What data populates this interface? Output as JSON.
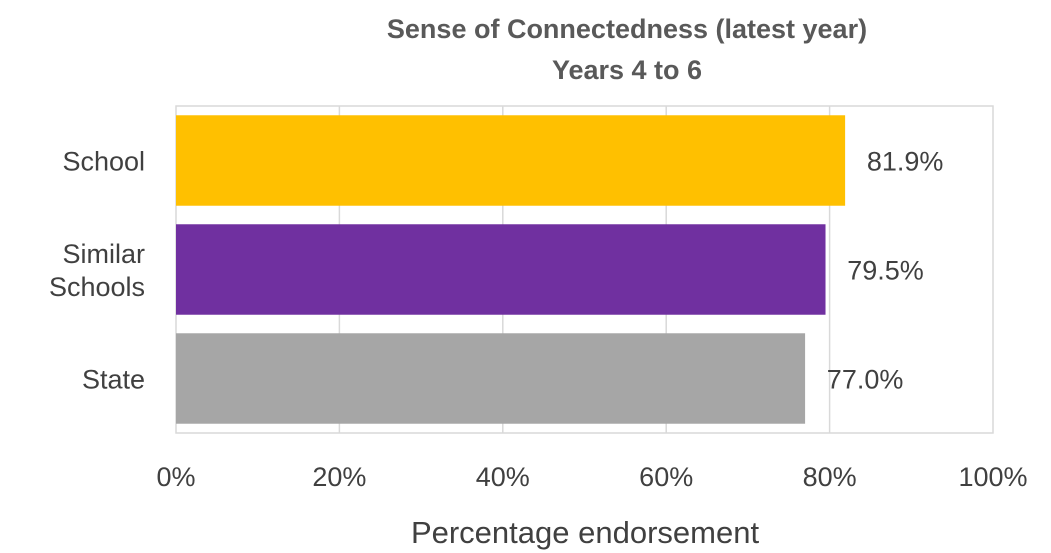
{
  "chart_data": {
    "type": "bar",
    "orientation": "horizontal",
    "title": "Sense of Connectedness (latest year)",
    "subtitle": "Years 4 to 6",
    "categories": [
      "School",
      "Similar Schools",
      "State"
    ],
    "category_lines": [
      [
        "School"
      ],
      [
        "Similar",
        "Schools"
      ],
      [
        "State"
      ]
    ],
    "values": [
      81.9,
      79.5,
      77.0
    ],
    "data_labels": [
      "81.9%",
      "79.5%",
      "77.0%"
    ],
    "colors": [
      "#ffc000",
      "#7030a0",
      "#a6a6a6"
    ],
    "xlabel": "Percentage endorsement",
    "ylabel": "",
    "xlim": [
      0,
      100
    ],
    "xticks": [
      0,
      20,
      40,
      60,
      80,
      100
    ],
    "xtick_labels": [
      "0%",
      "20%",
      "40%",
      "60%",
      "80%",
      "100%"
    ],
    "grid": true,
    "legend": "none"
  }
}
